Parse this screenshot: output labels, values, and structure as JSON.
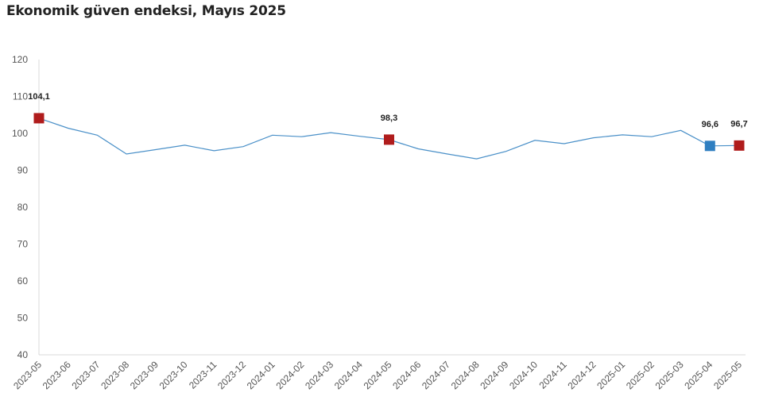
{
  "chart_data": {
    "type": "line",
    "title": "Ekonomik güven endeksi, Mayıs 2025",
    "xlabel": "",
    "ylabel": "",
    "ylim": [
      40,
      120
    ],
    "yticks": [
      40,
      50,
      60,
      70,
      80,
      90,
      100,
      110,
      120
    ],
    "grid": false,
    "legend": "none",
    "categories": [
      "2023-05",
      "2023-06",
      "2023-07",
      "2023-08",
      "2023-09",
      "2023-10",
      "2023-11",
      "2023-12",
      "2024-01",
      "2024-02",
      "2024-03",
      "2024-04",
      "2024-05",
      "2024-06",
      "2024-07",
      "2024-08",
      "2024-09",
      "2024-10",
      "2024-11",
      "2024-12",
      "2025-01",
      "2025-02",
      "2025-03",
      "2025-04",
      "2025-05"
    ],
    "series": [
      {
        "values": [
          104.1,
          101.4,
          99.5,
          94.4,
          95.6,
          96.8,
          95.3,
          96.4,
          99.5,
          99.1,
          100.2,
          99.2,
          98.3,
          95.8,
          94.4,
          93.1,
          95.1,
          98.1,
          97.2,
          98.8,
          99.6,
          99.1,
          100.8,
          96.6,
          96.7
        ],
        "color": "#4a90c8"
      }
    ],
    "highlights": [
      {
        "category": "2023-05",
        "value": 104.1,
        "label": "104,1",
        "color": "#b01c1c"
      },
      {
        "category": "2024-05",
        "value": 98.3,
        "label": "98,3",
        "color": "#b01c1c"
      },
      {
        "category": "2025-04",
        "value": 96.6,
        "label": "96,6",
        "color": "#2f7fc1"
      },
      {
        "category": "2025-05",
        "value": 96.7,
        "label": "96,7",
        "color": "#b01c1c"
      }
    ]
  }
}
